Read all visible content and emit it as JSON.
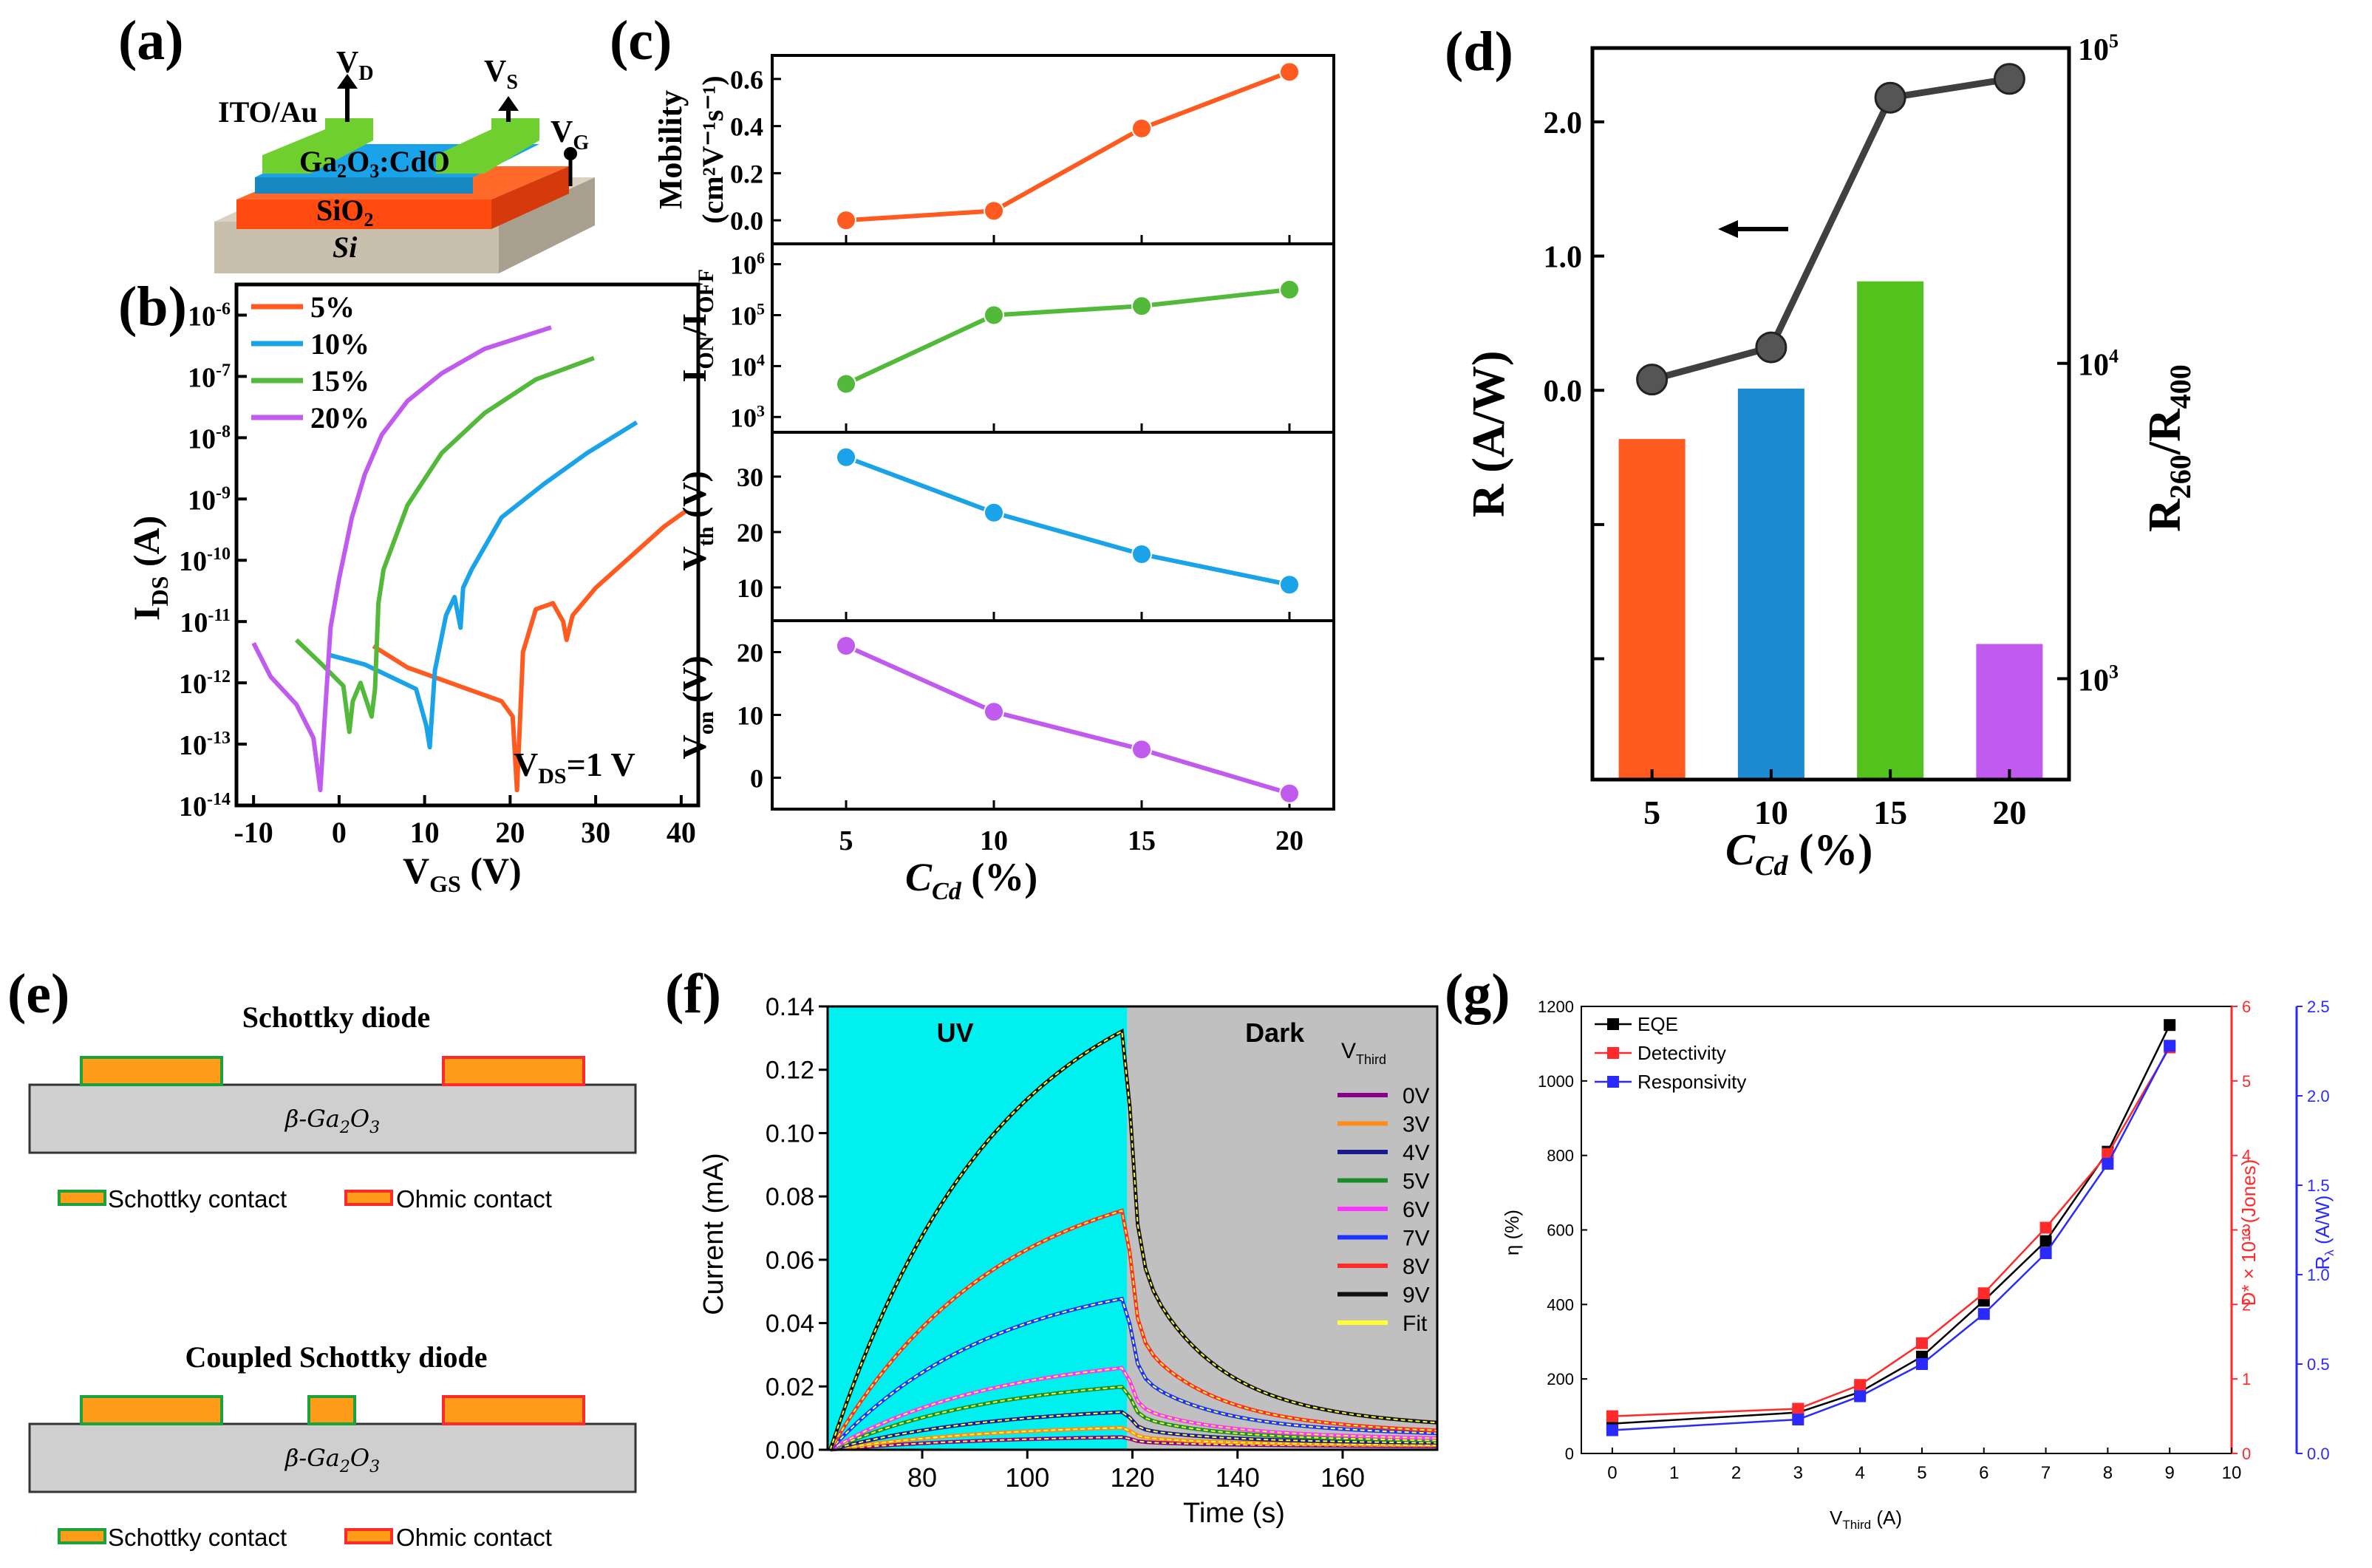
{
  "figure": {
    "panel_labels": [
      "(a)",
      "(b)",
      "(c)",
      "(d)",
      "(e)",
      "(f)",
      "(g)"
    ]
  },
  "panel_a": {
    "labels": {
      "vd_main": "V",
      "vd_sub": "D",
      "vs_main": "V",
      "vs_sub": "S",
      "vg_main": "V",
      "vg_sub": "G",
      "contact": "ITO/Au",
      "film": "Ga",
      "film_sub": "2",
      "film_rest": "O",
      "film_sub2": "3",
      "film_end": ":CdO",
      "oxide": "SiO",
      "oxide_sub": "2",
      "substrate": "Si"
    },
    "colors": {
      "contact": "#6fcf2e",
      "film": "#1aa3e8",
      "oxide": "#ff5a1f",
      "substrate": "#cfc6b5"
    }
  },
  "chart_data": [
    {
      "panel": "(b)",
      "type": "line",
      "xlabel_main": "V",
      "xlabel_sub": "GS",
      "xlabel_rest": " (V)",
      "ylabel_main": "I",
      "ylabel_sub": "DS",
      "ylabel_rest": " (A)",
      "xlim": [
        -12,
        42
      ],
      "ylim_log10": [
        -14,
        -5.5
      ],
      "x_ticks": [
        -10,
        0,
        10,
        20,
        30,
        40
      ],
      "x_tick_labels": [
        "-10",
        "0",
        "10",
        "20",
        "30",
        "40"
      ],
      "y_ticks_exp": [
        -14,
        -13,
        -12,
        -11,
        -10,
        -9,
        -8,
        -7,
        -6
      ],
      "y_tick_base": "10",
      "annotation_main": "V",
      "annotation_sub": "DS",
      "annotation_rest": "=1 V",
      "series": [
        {
          "name": "5%",
          "color": "#ff5a1f",
          "x": [
            4,
            8,
            12,
            16,
            19,
            20.3,
            20.8,
            21.5,
            23,
            25,
            26.2,
            26.6,
            27.3,
            30,
            34,
            38,
            40.5
          ],
          "logy": [
            -11.4,
            -11.75,
            -11.95,
            -12.15,
            -12.3,
            -12.55,
            -13.75,
            -11.5,
            -10.8,
            -10.7,
            -11.0,
            -11.3,
            -10.9,
            -10.45,
            -9.95,
            -9.45,
            -9.2
          ]
        },
        {
          "name": "10%",
          "color": "#1aa3e8",
          "x": [
            -1,
            3,
            6,
            9,
            10.2,
            10.6,
            11.2,
            12.5,
            13.5,
            14.2,
            14.5,
            15.5,
            19,
            24,
            29,
            34.8
          ],
          "logy": [
            -11.55,
            -11.7,
            -11.9,
            -12.1,
            -12.7,
            -13.05,
            -11.8,
            -10.9,
            -10.6,
            -11.1,
            -10.45,
            -10.15,
            -9.3,
            -8.75,
            -8.25,
            -7.75
          ]
        },
        {
          "name": "15%",
          "color": "#53b93a",
          "x": [
            -5,
            -2,
            0.5,
            1.2,
            1.6,
            2.5,
            3.8,
            4.2,
            4.6,
            5.2,
            8,
            12,
            17,
            23,
            29.8
          ],
          "logy": [
            -11.3,
            -11.7,
            -12.05,
            -12.8,
            -12.3,
            -12.0,
            -12.55,
            -12.1,
            -10.7,
            -10.15,
            -9.1,
            -8.25,
            -7.6,
            -7.05,
            -6.7
          ]
        },
        {
          "name": "20%",
          "color": "#c15bf0",
          "x": [
            -10,
            -8,
            -5,
            -3,
            -2.2,
            -1.6,
            -1.0,
            0,
            1.5,
            3,
            5,
            8,
            12,
            17,
            24.8
          ],
          "logy": [
            -11.35,
            -11.9,
            -12.35,
            -12.9,
            -13.75,
            -12.4,
            -11.1,
            -10.3,
            -9.3,
            -8.6,
            -7.95,
            -7.4,
            -6.95,
            -6.55,
            -6.2
          ]
        }
      ]
    },
    {
      "panel": "(c)",
      "type": "line",
      "xlabel_main": "C",
      "xlabel_sub": "Cd",
      "xlabel_rest": " (%)",
      "x": [
        5,
        10,
        15,
        20
      ],
      "x_tick_labels": [
        "5",
        "10",
        "15",
        "20"
      ],
      "xlim": [
        2.5,
        21.5
      ],
      "subplots": [
        {
          "name": "Mobility",
          "color": "#ff5a1f",
          "ylabel_l1": "Mobility",
          "ylabel_l2": "(cm²V⁻¹s⁻¹)",
          "values": [
            0.0,
            0.04,
            0.39,
            0.63
          ],
          "ylim": [
            -0.1,
            0.7
          ],
          "yticks": [
            0.0,
            0.2,
            0.4,
            0.6
          ],
          "ytick_labels": [
            "0.0",
            "0.2",
            "0.4",
            "0.6"
          ],
          "log": false
        },
        {
          "name": "ION/IOFF",
          "color": "#53b93a",
          "ylabel_main": "I",
          "ylabel_sub1": "ON",
          "ylabel_mid": "/I",
          "ylabel_sub2": "OFF",
          "values_log10": [
            3.65,
            5.0,
            5.18,
            5.5
          ],
          "ylim": [
            2.7,
            6.4
          ],
          "yticks": [
            3,
            4,
            5,
            6
          ],
          "ytick_base": "10",
          "log": true
        },
        {
          "name": "Vth",
          "color": "#1aa3e8",
          "ylabel_main": "V",
          "ylabel_sub": "th",
          "ylabel_rest": " (V)",
          "values": [
            33.5,
            23.5,
            16.0,
            10.5
          ],
          "ylim": [
            4,
            38
          ],
          "yticks": [
            10,
            20,
            30
          ],
          "ytick_labels": [
            "10",
            "20",
            "30"
          ],
          "log": false
        },
        {
          "name": "Von",
          "color": "#c15bf0",
          "ylabel_main": "V",
          "ylabel_sub": "on",
          "ylabel_rest": " (V)",
          "values": [
            21,
            10.5,
            4.5,
            -2.5
          ],
          "ylim": [
            -5,
            25
          ],
          "yticks": [
            0,
            10,
            20
          ],
          "ytick_labels": [
            "0",
            "10",
            "20"
          ],
          "log": false
        }
      ]
    },
    {
      "panel": "(d)",
      "type": "bar+line",
      "categories": [
        "5",
        "10",
        "15",
        "20"
      ],
      "xlabel_main": "C",
      "xlabel_sub": "Cd",
      "xlabel_rest": " (%)",
      "ylabel_left": "R (A/W)",
      "ylabel_right_main": "R",
      "ylabel_right_sub1": "260",
      "ylabel_right_mid": "/R",
      "ylabel_right_sub2": "400",
      "left_ylim": [
        -2.9,
        2.55
      ],
      "left_yticks": [
        0.0,
        1.0,
        2.0
      ],
      "left_ytick_labels": [
        "0.0",
        "1.0",
        "2.0"
      ],
      "left_minor_ticks": [
        -1.0,
        -2.0
      ],
      "line_values": [
        0.08,
        0.32,
        2.18,
        2.32
      ],
      "line_color": "#404040",
      "right_ylim_log10": [
        2.68,
        5.0
      ],
      "right_yticks_exp": [
        3,
        4,
        5
      ],
      "right_ytick_base": "10",
      "bar_values_log10": [
        3.76,
        3.92,
        4.26,
        3.11
      ],
      "bar_colors": [
        "#ff5a1f",
        "#1c8bd1",
        "#53c21c",
        "#c15bf0"
      ],
      "arrow_direction": "left"
    },
    {
      "panel": "(f)",
      "type": "line",
      "xlabel": "Time (s)",
      "ylabel": "Current (mA)",
      "xlim": [
        62,
        178
      ],
      "ylim": [
        0,
        0.14
      ],
      "x_ticks": [
        80,
        100,
        120,
        140,
        160
      ],
      "x_tick_labels": [
        "80",
        "100",
        "120",
        "140",
        "160"
      ],
      "y_ticks": [
        0.0,
        0.02,
        0.04,
        0.06,
        0.08,
        0.1,
        0.12,
        0.14
      ],
      "y_tick_labels": [
        "0.00",
        "0.02",
        "0.04",
        "0.06",
        "0.08",
        "0.10",
        "0.12",
        "0.14"
      ],
      "region_uv_label": "UV",
      "region_dark_label": "Dark",
      "region_split": 119,
      "uv_color": "#00f0f0",
      "dark_color": "#c0c0c0",
      "legend_title_main": "V",
      "legend_title_sub": "Third",
      "series": [
        {
          "name": "0V",
          "color": "#8b008b",
          "peak": 0.004,
          "tail": 0.0015
        },
        {
          "name": "3V",
          "color": "#ff8c1a",
          "peak": 0.007,
          "tail": 0.002
        },
        {
          "name": "4V",
          "color": "#1a1a8c",
          "peak": 0.012,
          "tail": 0.003
        },
        {
          "name": "5V",
          "color": "#1a8c2a",
          "peak": 0.02,
          "tail": 0.004
        },
        {
          "name": "6V",
          "color": "#ff33ff",
          "peak": 0.026,
          "tail": 0.005
        },
        {
          "name": "7V",
          "color": "#1a33ff",
          "peak": 0.048,
          "tail": 0.007
        },
        {
          "name": "8V",
          "color": "#ff2a2a",
          "peak": 0.076,
          "tail": 0.008
        },
        {
          "name": "9V",
          "color": "#111111",
          "peak": 0.133,
          "tail": 0.011
        }
      ],
      "fit": {
        "name": "Fit",
        "color": "#ffff33"
      }
    },
    {
      "panel": "(g)",
      "type": "line",
      "xlabel_main": "V",
      "xlabel_sub": "Third",
      "xlabel_rest": " (A)",
      "ylabel_left": "η (%)",
      "ylabel_right1": "D* × 10¹³ (Jones)",
      "ylabel_right2_main": "R",
      "ylabel_right2_sub": "λ",
      "ylabel_right2_rest": " (A/W)",
      "x": [
        0,
        3,
        4,
        5,
        6,
        7,
        8,
        9
      ],
      "xlim": [
        -0.5,
        10
      ],
      "x_ticks": [
        0,
        1,
        2,
        3,
        4,
        5,
        6,
        7,
        8,
        9,
        10
      ],
      "x_tick_labels": [
        "0",
        "1",
        "2",
        "3",
        "4",
        "5",
        "6",
        "7",
        "8",
        "9",
        "10"
      ],
      "left_ylim": [
        0,
        1200
      ],
      "left_yticks": [
        0,
        200,
        400,
        600,
        800,
        1000,
        1200
      ],
      "left_ytick_labels": [
        "0",
        "200",
        "400",
        "600",
        "800",
        "1000",
        "1200"
      ],
      "right1_ylim": [
        0,
        6
      ],
      "right1_yticks": [
        0,
        1,
        2,
        3,
        4,
        5,
        6
      ],
      "right1_ytick_labels": [
        "0",
        "1",
        "2",
        "3",
        "4",
        "5",
        "6"
      ],
      "right1_color": "#ff2a2a",
      "right2_ylim": [
        0,
        2.5
      ],
      "right2_yticks": [
        0.0,
        0.5,
        1.0,
        1.5,
        2.0,
        2.5
      ],
      "right2_ytick_labels": [
        "0.0",
        "0.5",
        "1.0",
        "1.5",
        "2.0",
        "2.5"
      ],
      "right2_color": "#2a2aff",
      "series": [
        {
          "name": "EQE",
          "color": "#000000",
          "axis": "left",
          "values": [
            80,
            110,
            165,
            260,
            410,
            570,
            810,
            1150
          ]
        },
        {
          "name": "Detectivity",
          "color": "#ff2a2a",
          "axis": "right1",
          "values": [
            0.5,
            0.6,
            0.92,
            1.48,
            2.15,
            3.03,
            4.02,
            5.45
          ]
        },
        {
          "name": "Responsivity",
          "color": "#2a2aff",
          "axis": "right2",
          "values": [
            0.13,
            0.19,
            0.32,
            0.5,
            0.78,
            1.12,
            1.62,
            2.28
          ]
        }
      ]
    }
  ],
  "panel_e": {
    "top_title": "Schottky diode",
    "bottom_title": "Coupled Schottky diode",
    "substrate_main": "β-Ga",
    "substrate_sub": "2",
    "substrate_mid": "O",
    "substrate_sub2": "3",
    "legend_schottky": "Schottky contact",
    "legend_ohmic": "Ohmic contact",
    "colors": {
      "pad_fill": "#ff9c1a",
      "schottky_edge": "#1aa33a",
      "ohmic_edge": "#ff2a2a",
      "substrate": "#cfcfcf"
    }
  }
}
